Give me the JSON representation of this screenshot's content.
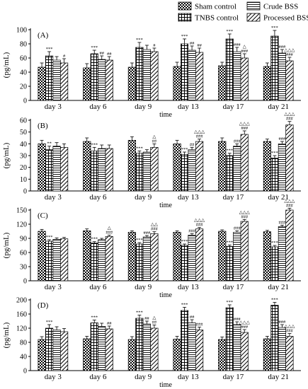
{
  "legend": {
    "items": [
      {
        "label": "Sham control",
        "pattern": "checker"
      },
      {
        "label": "Crude BSS",
        "pattern": "hlines"
      },
      {
        "label": "TNBS control",
        "pattern": "grid"
      },
      {
        "label": "Processed BSS",
        "pattern": "diag"
      }
    ]
  },
  "colors": {
    "ink": "#000000",
    "background": "#ffffff"
  },
  "chart_data": [
    {
      "type": "bar",
      "panel_label": "(A)",
      "ylabel": "(pg/mL)",
      "xlabel": "time",
      "ylim": [
        0,
        100
      ],
      "yticks": [
        0,
        20,
        40,
        60,
        80,
        100
      ],
      "categories": [
        "day 3",
        "day 6",
        "day 9",
        "day 13",
        "day 17",
        "day 21"
      ],
      "series": [
        {
          "name": "Sham control",
          "values": [
            47,
            46,
            47,
            48,
            49,
            48
          ],
          "errors": [
            6,
            6,
            6,
            6,
            5,
            5
          ],
          "annotations": [
            "",
            "",
            "",
            "",
            "",
            ""
          ]
        },
        {
          "name": "TNBS control",
          "values": [
            63,
            66,
            75,
            80,
            87,
            91
          ],
          "errors": [
            6,
            5,
            7,
            7,
            7,
            8
          ],
          "annotations": [
            "***",
            "***",
            "***",
            "***",
            "***",
            "***"
          ]
        },
        {
          "name": "Crude BSS",
          "values": [
            57,
            58,
            72,
            71,
            69,
            67
          ],
          "errors": [
            5,
            5,
            6,
            6,
            6,
            5
          ],
          "annotations": [
            "",
            "##",
            "",
            "##",
            "###",
            "###"
          ]
        },
        {
          "name": "Processed BSS",
          "values": [
            53,
            57,
            69,
            68,
            60,
            56
          ],
          "errors": [
            6,
            5,
            5,
            6,
            6,
            5
          ],
          "annotations": [
            "#",
            "##",
            "#",
            "##",
            "△\n###",
            "△△△\n###"
          ]
        }
      ]
    },
    {
      "type": "bar",
      "panel_label": "(B)",
      "ylabel": "(pg/mL)",
      "xlabel": "time",
      "ylim": [
        0,
        60
      ],
      "yticks": [
        0,
        10,
        20,
        30,
        40,
        50,
        60
      ],
      "categories": [
        "day 3",
        "day 6",
        "day 9",
        "day 13",
        "day 17",
        "day 21"
      ],
      "series": [
        {
          "name": "Sham control",
          "values": [
            40,
            42,
            43,
            40,
            42,
            42
          ],
          "errors": [
            3,
            3,
            3,
            3,
            3,
            2
          ],
          "annotations": [
            "",
            "",
            "",
            "",
            "",
            ""
          ]
        },
        {
          "name": "TNBS control",
          "values": [
            35,
            34,
            32,
            31,
            30,
            28
          ],
          "errors": [
            3,
            3,
            2,
            2,
            2,
            2
          ],
          "annotations": [
            "**",
            "***",
            "***",
            "***",
            "***",
            "***"
          ]
        },
        {
          "name": "Crude BSS",
          "values": [
            38,
            36,
            33,
            35,
            38,
            40
          ],
          "errors": [
            3,
            3,
            2,
            2,
            2,
            2
          ],
          "annotations": [
            "",
            "",
            "",
            "##",
            "###",
            "###"
          ]
        },
        {
          "name": "Processed BSS",
          "values": [
            37,
            36,
            37,
            42,
            48,
            56
          ],
          "errors": [
            3,
            3,
            3,
            2,
            3,
            3
          ],
          "annotations": [
            "",
            "",
            "△\n##",
            "△△△\n###",
            "△△△\n###",
            "△△△\n###"
          ]
        }
      ]
    },
    {
      "type": "bar",
      "panel_label": "(C)",
      "ylabel": "(pg/mL)",
      "xlabel": "time",
      "ylim": [
        0,
        150
      ],
      "yticks": [
        0,
        30,
        60,
        90,
        120,
        150
      ],
      "categories": [
        "day 3",
        "day 6",
        "day 9",
        "day 13",
        "day 17",
        "day 21"
      ],
      "series": [
        {
          "name": "Sham control",
          "values": [
            105,
            106,
            103,
            103,
            105,
            104
          ],
          "errors": [
            4,
            4,
            3,
            3,
            3,
            3
          ],
          "annotations": [
            "",
            "",
            "",
            "",
            "",
            ""
          ]
        },
        {
          "name": "TNBS control",
          "values": [
            84,
            80,
            78,
            75,
            73,
            72
          ],
          "errors": [
            3,
            3,
            3,
            3,
            3,
            3
          ],
          "annotations": [
            "***",
            "***",
            "***",
            "***",
            "***",
            "***"
          ]
        },
        {
          "name": "Crude BSS",
          "values": [
            88,
            87,
            93,
            97,
            103,
            115
          ],
          "errors": [
            3,
            3,
            3,
            3,
            3,
            3
          ],
          "annotations": [
            "",
            "",
            "###",
            "###",
            "###",
            "###"
          ]
        },
        {
          "name": "Processed BSS",
          "values": [
            89,
            94,
            100,
            110,
            126,
            150
          ],
          "errors": [
            3,
            3,
            4,
            3,
            4,
            4
          ],
          "annotations": [
            "",
            "△\n###",
            "△△\n###",
            "△△△\n###",
            "△△△\n###",
            "△△△\n###"
          ]
        }
      ]
    },
    {
      "type": "bar",
      "panel_label": "(D)",
      "ylabel": "(pg/mL)",
      "xlabel": "time",
      "ylim": [
        0,
        200
      ],
      "yticks": [
        0,
        40,
        80,
        120,
        160,
        200
      ],
      "categories": [
        "day 3",
        "day 6",
        "day 9",
        "day 13",
        "day 17",
        "day 21"
      ],
      "series": [
        {
          "name": "Sham control",
          "values": [
            88,
            90,
            88,
            89,
            88,
            90
          ],
          "errors": [
            8,
            7,
            8,
            8,
            7,
            7
          ],
          "annotations": [
            "",
            "",
            "",
            "",
            "",
            ""
          ]
        },
        {
          "name": "TNBS control",
          "values": [
            120,
            135,
            148,
            170,
            178,
            185
          ],
          "errors": [
            10,
            8,
            9,
            9,
            8,
            8
          ],
          "annotations": [
            "***",
            "***",
            "***",
            "***",
            "***",
            "***"
          ]
        },
        {
          "name": "Crude BSS",
          "values": [
            115,
            125,
            132,
            135,
            130,
            122
          ],
          "errors": [
            9,
            9,
            8,
            9,
            8,
            8
          ],
          "annotations": [
            "",
            "",
            "##",
            "##",
            "###",
            "###"
          ]
        },
        {
          "name": "Processed BSS",
          "values": [
            110,
            118,
            120,
            115,
            108,
            97
          ],
          "errors": [
            9,
            8,
            9,
            8,
            8,
            8
          ],
          "annotations": [
            "",
            "##",
            "△\n##",
            "###",
            "△△△\n###",
            "△△△\n###"
          ]
        }
      ]
    }
  ]
}
